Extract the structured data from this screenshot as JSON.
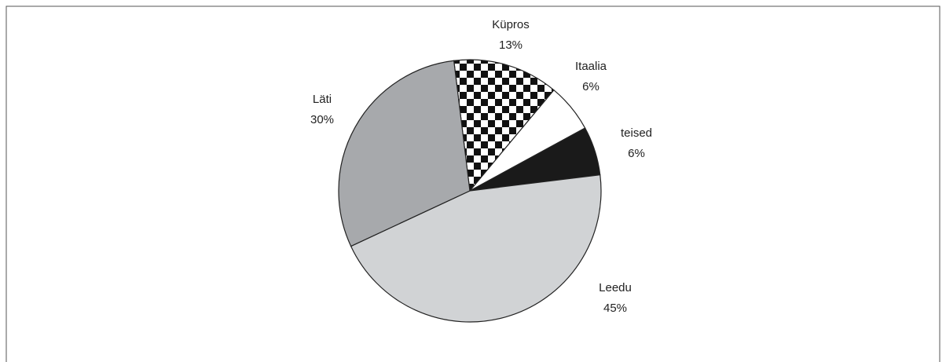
{
  "chart_data": {
    "type": "pie",
    "categories": [
      "Küpros",
      "Itaalia",
      "teised",
      "Leedu",
      "Läti"
    ],
    "values": [
      13,
      6,
      6,
      45,
      30
    ],
    "value_labels": [
      "13%",
      "6%",
      "6%",
      "45%",
      "30%"
    ],
    "colors": [
      "checker",
      "#ffffff",
      "#1a1a1a",
      "#d1d3d5",
      "#a7a9ac"
    ]
  }
}
